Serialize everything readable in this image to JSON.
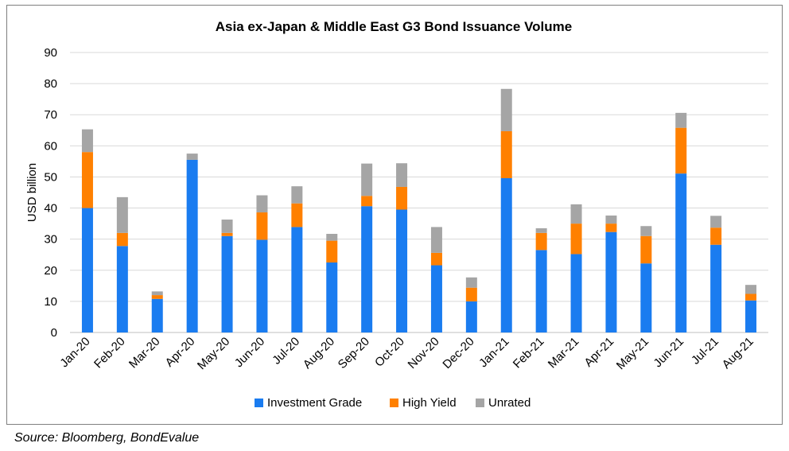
{
  "chart_data": {
    "type": "bar",
    "stacked": true,
    "title": "Asia ex-Japan & Middle East G3 Bond Issuance Volume",
    "ylabel": "USD billion",
    "xlabel": "",
    "ylim": [
      0,
      90
    ],
    "yticks": [
      0,
      10,
      20,
      30,
      40,
      50,
      60,
      70,
      80,
      90
    ],
    "grid": true,
    "legend_position": "bottom",
    "categories": [
      "Jan-20",
      "Feb-20",
      "Mar-20",
      "Apr-20",
      "May-20",
      "Jun-20",
      "Jul-20",
      "Aug-20",
      "Sep-20",
      "Oct-20",
      "Nov-20",
      "Dec-20",
      "Jan-21",
      "Feb-21",
      "Mar-21",
      "Apr-21",
      "May-21",
      "Jun-21",
      "Jul-21",
      "Aug-21"
    ],
    "series": [
      {
        "name": "Investment Grade",
        "color": "#1a7cf0",
        "values": [
          40.0,
          27.8,
          10.8,
          55.5,
          31.0,
          29.8,
          33.9,
          22.5,
          40.6,
          39.5,
          21.6,
          10.0,
          49.6,
          26.5,
          25.2,
          32.3,
          22.2,
          51.1,
          28.2,
          10.3
        ]
      },
      {
        "name": "High Yield",
        "color": "#ff8000",
        "values": [
          18.0,
          4.2,
          1.2,
          0.0,
          1.0,
          8.8,
          7.6,
          7.0,
          3.3,
          7.3,
          4.0,
          4.4,
          15.1,
          5.5,
          9.8,
          2.7,
          8.8,
          14.7,
          5.5,
          2.1
        ]
      },
      {
        "name": "Unrated",
        "color": "#a5a5a5",
        "values": [
          7.3,
          11.5,
          1.2,
          2.0,
          4.3,
          5.5,
          5.5,
          2.2,
          10.4,
          7.6,
          8.3,
          3.3,
          13.6,
          1.5,
          6.2,
          2.6,
          3.2,
          4.8,
          3.8,
          2.9
        ]
      }
    ]
  },
  "source_note": "Source: Bloomberg, BondEvalue"
}
